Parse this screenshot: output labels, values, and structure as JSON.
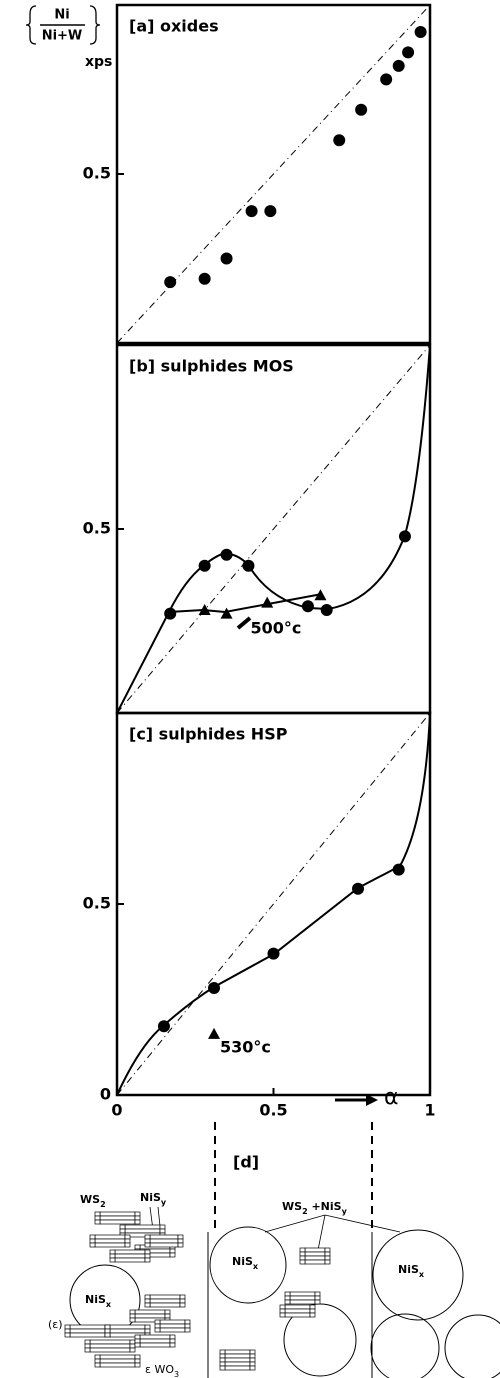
{
  "y_label": {
    "numerator": "Ni",
    "denominator": "Ni+W",
    "method": "xps"
  },
  "chart_data": [
    {
      "type": "scatter",
      "label": "[a] oxides",
      "color": "#000000",
      "diagonal": true,
      "x": [
        0.17,
        0.28,
        0.35,
        0.43,
        0.49,
        0.71,
        0.78,
        0.86,
        0.9,
        0.93,
        0.97
      ],
      "values": [
        0.18,
        0.19,
        0.25,
        0.39,
        0.39,
        0.6,
        0.69,
        0.78,
        0.82,
        0.86,
        0.92
      ],
      "xlim": [
        0,
        1
      ],
      "ylim": [
        0,
        1
      ],
      "yticks": [
        0.5
      ]
    },
    {
      "type": "scatter",
      "label": "[b] sulphides MOS",
      "color": "#000000",
      "diagonal": true,
      "x": [
        0.17,
        0.28,
        0.35,
        0.42,
        0.61,
        0.67,
        0.92
      ],
      "values": [
        0.27,
        0.4,
        0.43,
        0.4,
        0.29,
        0.28,
        0.48
      ],
      "triangles": {
        "x": [
          0.28,
          0.35,
          0.48,
          0.65
        ],
        "values": [
          0.28,
          0.27,
          0.3,
          0.32
        ]
      },
      "annotation": "500°c",
      "xlim": [
        0,
        1
      ],
      "ylim": [
        0,
        1
      ],
      "yticks": [
        0.5
      ]
    },
    {
      "type": "scatter",
      "label": "[c] sulphides HSP",
      "color": "#000000",
      "diagonal": true,
      "x": [
        0.15,
        0.31,
        0.5,
        0.77,
        0.9
      ],
      "values": [
        0.18,
        0.28,
        0.37,
        0.54,
        0.59
      ],
      "triangles": {
        "x": [
          0.31
        ],
        "values": [
          0.16
        ]
      },
      "annotation": "530°c",
      "x_label": "α",
      "xlim": [
        0,
        1
      ],
      "ylim": [
        0,
        1
      ],
      "xticks": [
        0,
        0.5,
        1
      ],
      "yticks": [
        0,
        0.5
      ]
    }
  ],
  "diagram": {
    "label": "[d]",
    "ws2": {
      "base": "WS",
      "sub": "2"
    },
    "nisy": {
      "base": "NiS",
      "sub": "y"
    },
    "nisx_left": {
      "base": "NiS",
      "sub": "x"
    },
    "epsilon": "(ε)",
    "ewo3": {
      "base": "ε WO",
      "sub": "3"
    },
    "mix": {
      "a": "WS",
      "a_sub": "2",
      "plus": " +NiS",
      "b_sub": "y"
    },
    "nisx_mid": {
      "base": "NiS",
      "sub": "x"
    },
    "nisx_right": {
      "base": "NiS",
      "sub": "x"
    }
  }
}
